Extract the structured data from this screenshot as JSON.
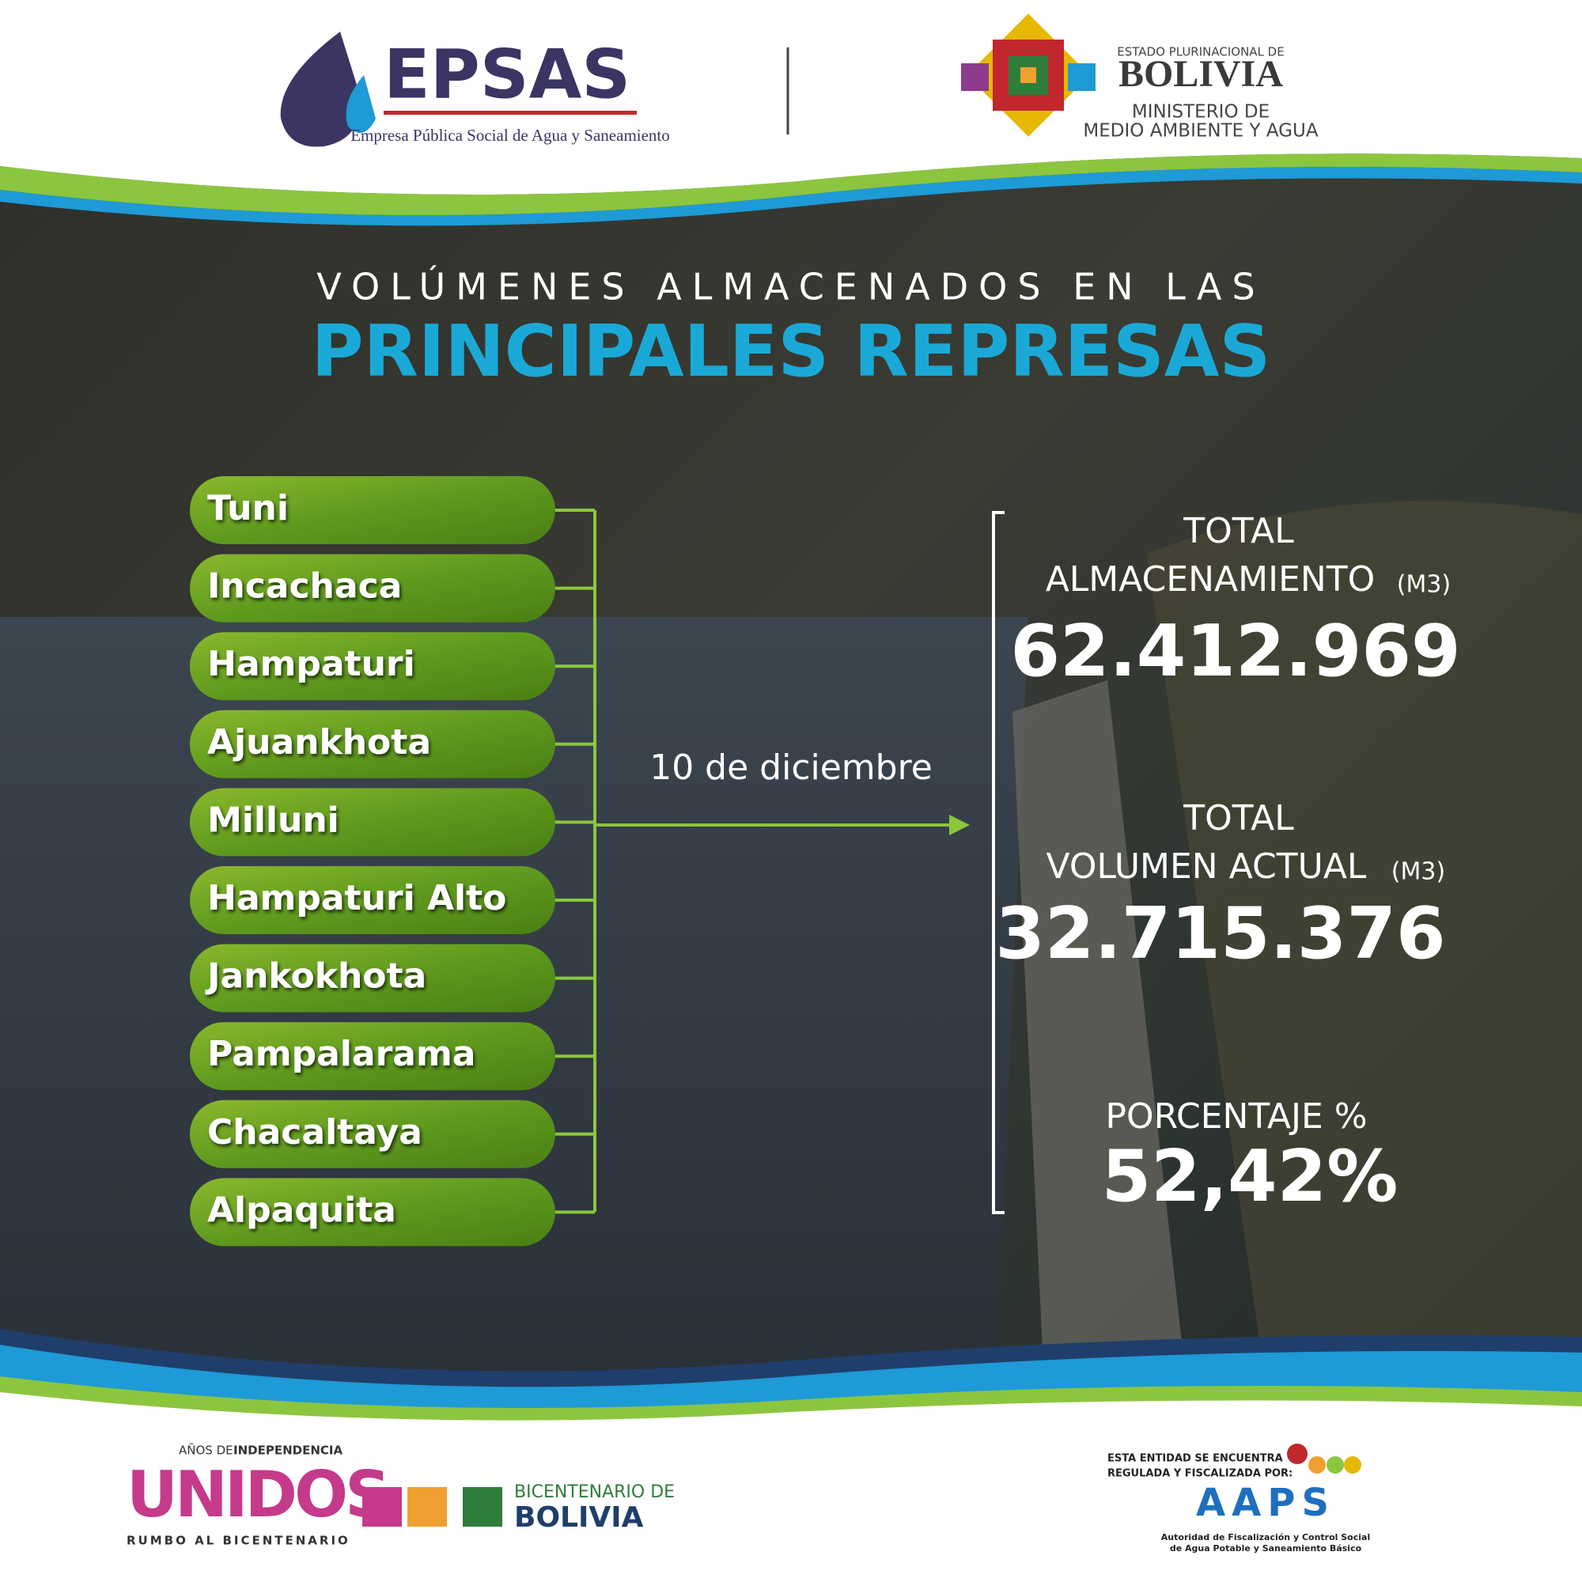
{
  "header": {
    "epsas_name": "EPSAS",
    "epsas_full": "Empresa Pública Social de Agua y Saneamiento",
    "gov_top": "ESTADO PLURINACIONAL DE",
    "gov_country": "BOLIVIA",
    "gov_ministry_1": "MINISTERIO DE",
    "gov_ministry_2": "MEDIO AMBIENTE Y AGUA"
  },
  "title": {
    "line1": "VOLÚMENES ALMACENADOS EN LAS",
    "line2": "PRINCIPALES REPRESAS"
  },
  "dams": [
    "Tuni",
    "Incachaca",
    "Hampaturi",
    "Ajuankhota",
    "Milluni",
    "Hampaturi Alto",
    "Jankokhota",
    "Pampalarama",
    "Chacaltaya",
    "Alpaquita"
  ],
  "date": "10 de diciembre",
  "stats": {
    "storage": {
      "label_1": "TOTAL",
      "label_2": "ALMACENAMIENTO",
      "unit": "(M3)",
      "value": "62.412.969"
    },
    "current": {
      "label_1": "TOTAL",
      "label_2": "VOLUMEN ACTUAL",
      "unit": "(M3)",
      "value": "32.715.376"
    },
    "percent": {
      "label": "PORCENTAJE %",
      "value": "52,42%"
    }
  },
  "footer": {
    "years": "AÑOS DE",
    "independence": "INDEPENDENCIA",
    "unidos": "UNIDOS",
    "rumbo": "RUMBO AL BICENTENARIO",
    "bicentenario": "BICENTENARIO DE",
    "bolivia": "BOLIVIA",
    "aaps_note_1": "ESTA ENTIDAD SE ENCUENTRA",
    "aaps_note_2": "REGULADA Y FISCALIZADA POR:",
    "aaps": "AAPS",
    "aaps_full_1": "Autoridad de Fiscalización y Control Social",
    "aaps_full_2": "de Agua Potable y Saneamiento Básico"
  }
}
